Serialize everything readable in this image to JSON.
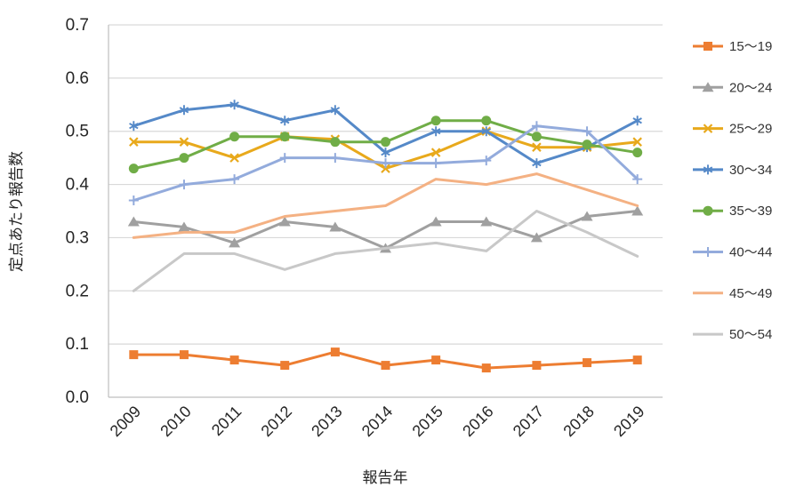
{
  "chart_data": {
    "type": "line",
    "title": "",
    "xlabel": "報告年",
    "ylabel": "定点あたり報告数",
    "x": [
      "2009",
      "2010",
      "2011",
      "2012",
      "2013",
      "2014",
      "2015",
      "2016",
      "2017",
      "2018",
      "2019"
    ],
    "ylim": [
      0.0,
      0.7
    ],
    "ytick_step": 0.1,
    "ytick_labels": [
      "0.0",
      "0.1",
      "0.2",
      "0.3",
      "0.4",
      "0.5",
      "0.6",
      "0.7"
    ],
    "grid": true,
    "legend_position": "right",
    "colors": {
      "grid": "#D9D9D9",
      "axis": "#BFBFBF",
      "tick_text": "#262626"
    },
    "series": [
      {
        "name": "15〜19",
        "color": "#ED7D31",
        "marker": "square",
        "values": [
          0.08,
          0.08,
          0.07,
          0.06,
          0.085,
          0.06,
          0.07,
          0.055,
          0.06,
          0.065,
          0.07
        ]
      },
      {
        "name": "20〜24",
        "color": "#A0A0A0",
        "marker": "triangle",
        "values": [
          0.33,
          0.32,
          0.29,
          0.33,
          0.32,
          0.28,
          0.33,
          0.33,
          0.3,
          0.34,
          0.35
        ]
      },
      {
        "name": "25〜29",
        "color": "#E8A91C",
        "marker": "x",
        "values": [
          0.48,
          0.48,
          0.45,
          0.49,
          0.485,
          0.43,
          0.46,
          0.5,
          0.47,
          0.47,
          0.48
        ]
      },
      {
        "name": "30〜34",
        "color": "#5589C8",
        "marker": "asterisk",
        "values": [
          0.51,
          0.54,
          0.55,
          0.52,
          0.54,
          0.46,
          0.5,
          0.5,
          0.44,
          0.47,
          0.52
        ]
      },
      {
        "name": "35〜39",
        "color": "#70AD47",
        "marker": "circle",
        "values": [
          0.43,
          0.45,
          0.49,
          0.49,
          0.48,
          0.48,
          0.52,
          0.52,
          0.49,
          0.475,
          0.46
        ]
      },
      {
        "name": "40〜44",
        "color": "#93ABDC",
        "marker": "plus",
        "values": [
          0.37,
          0.4,
          0.41,
          0.45,
          0.45,
          0.44,
          0.44,
          0.445,
          0.51,
          0.5,
          0.41
        ]
      },
      {
        "name": "45〜49",
        "color": "#F4B183",
        "marker": "none",
        "values": [
          0.3,
          0.31,
          0.31,
          0.34,
          0.35,
          0.36,
          0.41,
          0.4,
          0.42,
          0.39,
          0.36
        ]
      },
      {
        "name": "50〜54",
        "color": "#C8C8C8",
        "marker": "none",
        "values": [
          0.2,
          0.27,
          0.27,
          0.24,
          0.27,
          0.28,
          0.29,
          0.275,
          0.35,
          0.31,
          0.265
        ]
      }
    ]
  }
}
